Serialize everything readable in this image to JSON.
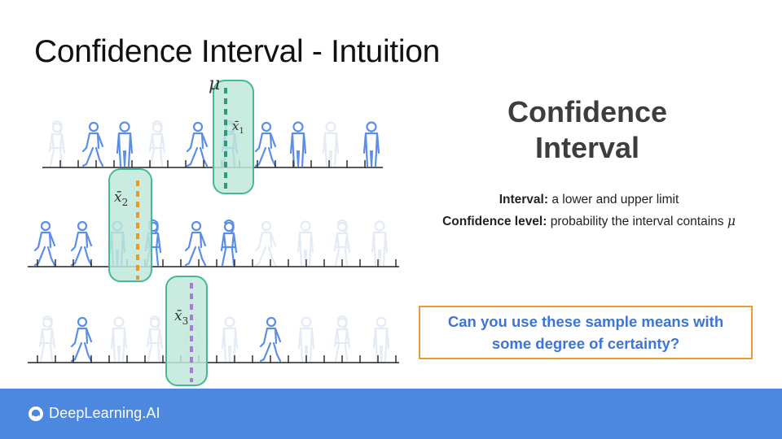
{
  "slide": {
    "title": "Confidence Interval - Intuition"
  },
  "labels": {
    "mu": "μ",
    "xbar": "x̄",
    "sample1_index": "1",
    "sample2_index": "2",
    "sample3_index": "3"
  },
  "heading": {
    "line1": "Confidence",
    "line2": "Interval"
  },
  "definitions": {
    "interval_label": "Interval:",
    "interval_text": "a lower and upper limit",
    "confidence_label": "Confidence level:",
    "confidence_text": "probability the interval contains",
    "mu": "μ"
  },
  "question": {
    "line1": "Can you use these sample means with",
    "line2": "some degree of certainty?"
  },
  "footer": {
    "brand": "DeepLearning.AI"
  },
  "colors": {
    "person_active": "#5b8ee8",
    "person_faded": "#e4ebf5",
    "interval_fill": "#bfe7da",
    "interval_stroke": "#46b79a",
    "mu_line": "#2e9a7c",
    "xbar2_line": "#e39b2e",
    "xbar3_line": "#a97bd6",
    "accent_orange": "#e89a3c",
    "question_text": "#3d74d6",
    "footer_bg": "#4c87e0"
  }
}
